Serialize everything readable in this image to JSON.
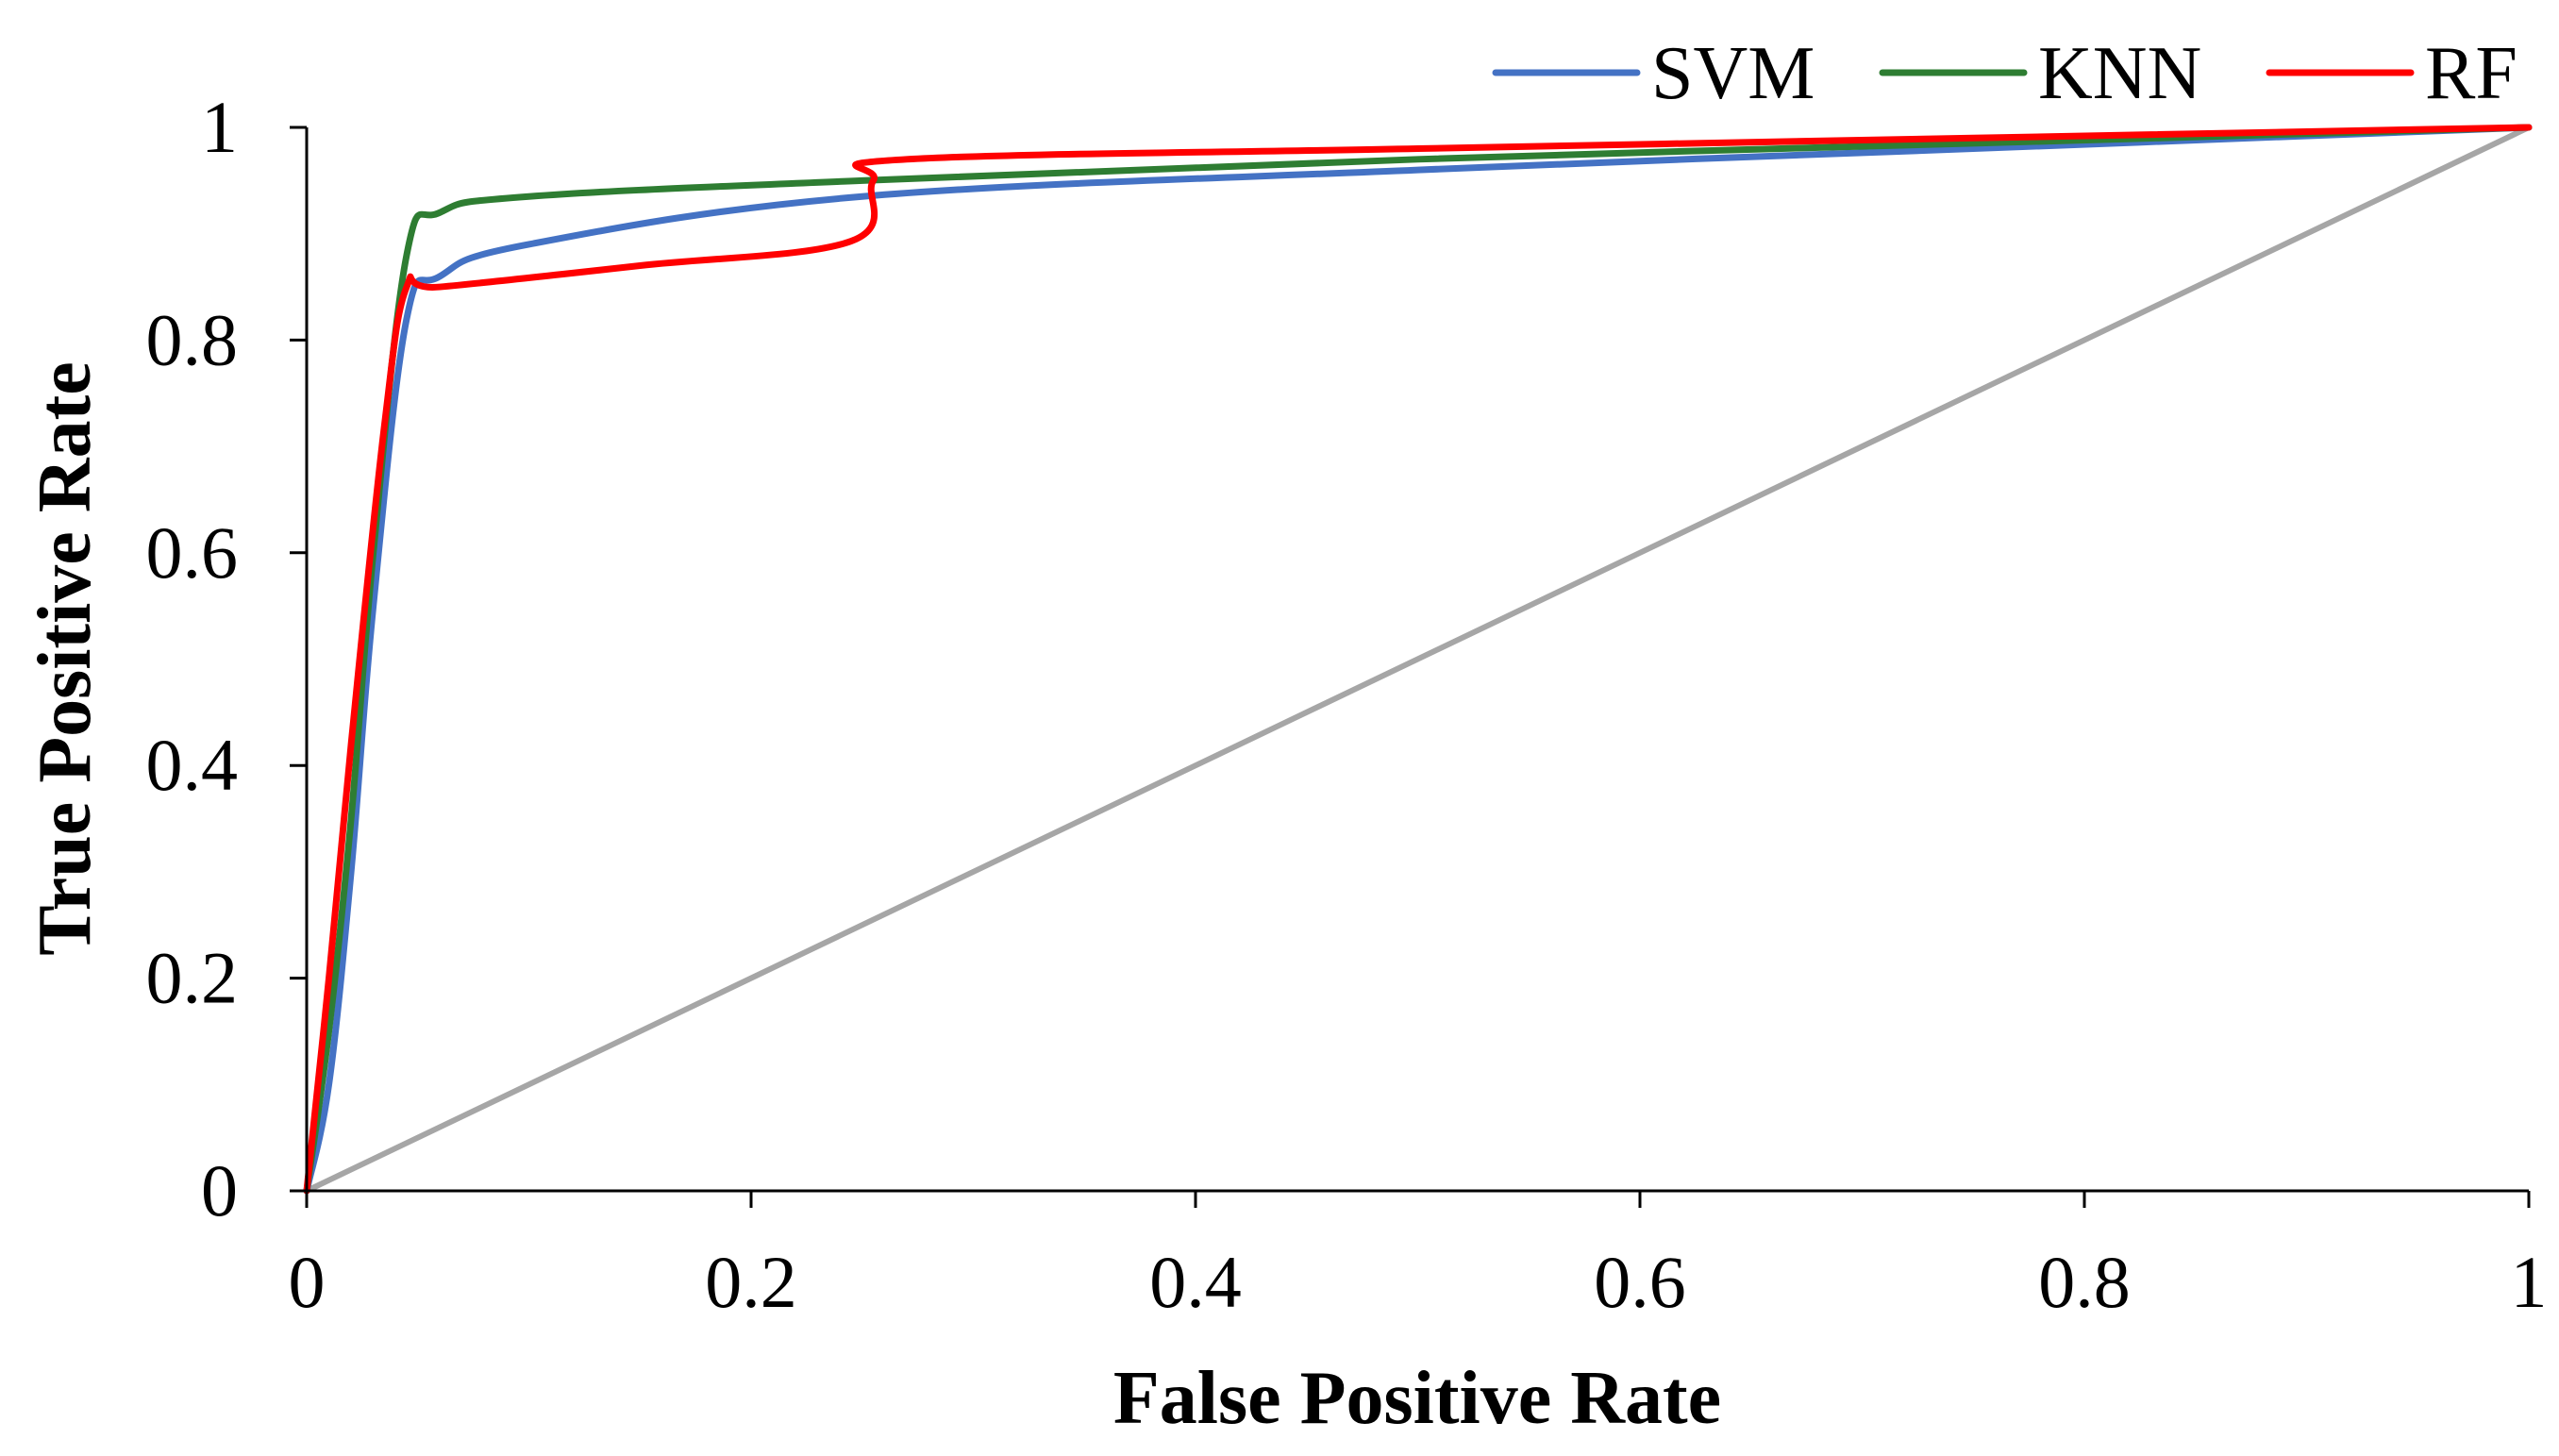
{
  "chart_data": {
    "type": "line",
    "title": "",
    "xlabel": "False Positive Rate",
    "ylabel": "True Positive Rate",
    "xlim": [
      0,
      1
    ],
    "ylim": [
      0,
      1
    ],
    "xticks": [
      0,
      0.2,
      0.4,
      0.6,
      0.8,
      1
    ],
    "yticks": [
      0,
      0.2,
      0.4,
      0.6,
      0.8,
      1
    ],
    "xtick_labels": [
      "0",
      "0.2",
      "0.4",
      "0.6",
      "0.8",
      "1"
    ],
    "ytick_labels": [
      "0",
      "0.2",
      "0.4",
      "0.6",
      "0.8",
      "1"
    ],
    "grid": false,
    "legend_position": "top-right",
    "series": [
      {
        "name": "SVM",
        "color": "#4472c4",
        "points": [
          [
            0,
            0
          ],
          [
            0.01,
            0.1
          ],
          [
            0.02,
            0.3
          ],
          [
            0.03,
            0.55
          ],
          [
            0.045,
            0.82
          ],
          [
            0.06,
            0.86
          ],
          [
            0.1,
            0.89
          ],
          [
            0.25,
            0.935
          ],
          [
            0.5,
            0.96
          ],
          [
            0.75,
            0.98
          ],
          [
            1,
            1
          ]
        ]
      },
      {
        "name": "KNN",
        "color": "#2e7d32",
        "points": [
          [
            0,
            0
          ],
          [
            0.01,
            0.15
          ],
          [
            0.02,
            0.35
          ],
          [
            0.03,
            0.6
          ],
          [
            0.045,
            0.88
          ],
          [
            0.06,
            0.92
          ],
          [
            0.1,
            0.935
          ],
          [
            0.25,
            0.95
          ],
          [
            0.5,
            0.97
          ],
          [
            0.75,
            0.985
          ],
          [
            1,
            1
          ]
        ]
      },
      {
        "name": "RF",
        "color": "#ff0000",
        "points": [
          [
            0,
            0
          ],
          [
            0.01,
            0.2
          ],
          [
            0.02,
            0.42
          ],
          [
            0.035,
            0.72
          ],
          [
            0.045,
            0.85
          ],
          [
            0.06,
            0.85
          ],
          [
            0.15,
            0.87
          ],
          [
            0.245,
            0.893
          ],
          [
            0.255,
            0.95
          ],
          [
            0.27,
            0.97
          ],
          [
            0.5,
            0.98
          ],
          [
            0.75,
            0.99
          ],
          [
            1,
            1
          ]
        ]
      },
      {
        "name": "",
        "color": "#a6a6a6",
        "points": [
          [
            0,
            0
          ],
          [
            1,
            1
          ]
        ]
      }
    ]
  }
}
